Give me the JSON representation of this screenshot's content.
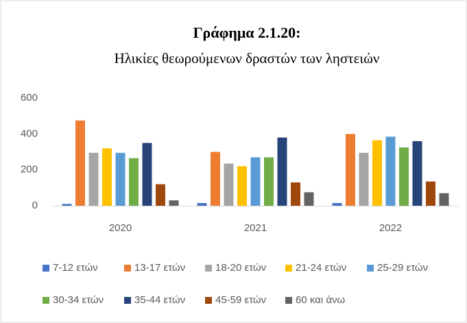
{
  "chart_data": {
    "type": "bar",
    "title": "Γράφημα 2.1.20:",
    "subtitle": "Ηλικίες θεωρούμενων δραστών των ληστειών",
    "categories": [
      "2020",
      "2021",
      "2022"
    ],
    "series": [
      {
        "name": "7-12 ετών",
        "color": "#4472c4",
        "values": [
          10,
          15,
          15
        ]
      },
      {
        "name": "13-17 ετών",
        "color": "#ed7d31",
        "values": [
          475,
          300,
          400
        ]
      },
      {
        "name": "18-20 ετών",
        "color": "#a5a5a5",
        "values": [
          295,
          235,
          295
        ]
      },
      {
        "name": "21-24 ετών",
        "color": "#ffc000",
        "values": [
          320,
          220,
          365
        ]
      },
      {
        "name": "25-29 ετών",
        "color": "#5b9bd5",
        "values": [
          295,
          270,
          385
        ]
      },
      {
        "name": "30-34 ετών",
        "color": "#70ad47",
        "values": [
          265,
          270,
          325
        ]
      },
      {
        "name": "35-44 ετών",
        "color": "#264478",
        "values": [
          350,
          380,
          360
        ]
      },
      {
        "name": "45-59 ετών",
        "color": "#9e480e",
        "values": [
          120,
          130,
          135
        ]
      },
      {
        "name": "60 και άνω",
        "color": "#636363",
        "values": [
          30,
          75,
          70
        ]
      }
    ],
    "ylim": [
      0,
      600
    ],
    "yticks": [
      0,
      200,
      400,
      600
    ],
    "grid": false,
    "legend": "bottom"
  }
}
